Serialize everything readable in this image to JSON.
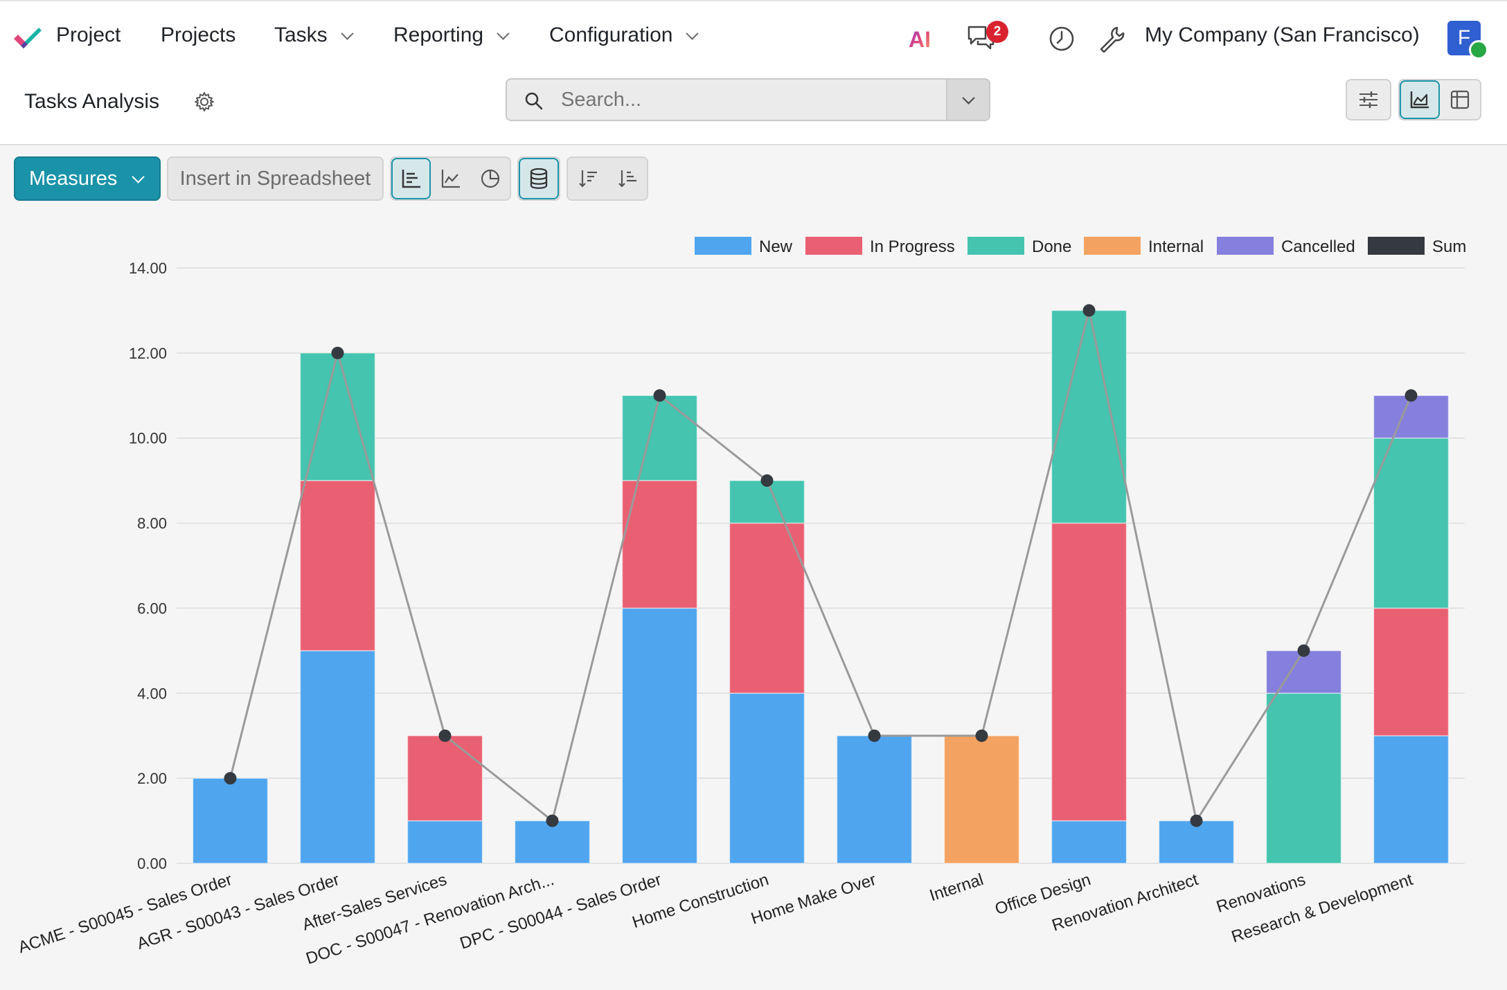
{
  "nav": {
    "app_name": "Project",
    "items": [
      {
        "label": "Projects",
        "dropdown": false
      },
      {
        "label": "Tasks",
        "dropdown": true
      },
      {
        "label": "Reporting",
        "dropdown": true
      },
      {
        "label": "Configuration",
        "dropdown": true
      }
    ],
    "ai_label": "AI",
    "messages_badge": "2",
    "company": "My Company (San Francisco)",
    "avatar_initial": "F"
  },
  "control_panel": {
    "breadcrumb": "Tasks Analysis",
    "search_placeholder": "Search..."
  },
  "toolbar": {
    "measures_label": "Measures",
    "insert_label": "Insert in Spreadsheet"
  },
  "colors": {
    "accent": "#1a93a9",
    "New": "#4fa5ee",
    "In Progress": "#ea6073",
    "Done": "#45c4af",
    "Internal": "#f4a261",
    "Cancelled": "#8580dd",
    "Sum": "#343a40"
  },
  "chart_data": {
    "type": "bar",
    "stacked": true,
    "categories": [
      "ACME - S00045 - Sales Order",
      "AGR - S00043 - Sales Order",
      "After-Sales Services",
      "DOC - S00047 - Renovation Arch...",
      "DPC - S00044 - Sales Order",
      "Home Construction",
      "Home Make Over",
      "Internal",
      "Office Design",
      "Renovation Architect",
      "Renovations",
      "Research & Development"
    ],
    "series": [
      {
        "name": "New",
        "values": [
          2,
          5,
          1,
          1,
          6,
          4,
          3,
          0,
          1,
          1,
          0,
          3
        ]
      },
      {
        "name": "In Progress",
        "values": [
          0,
          4,
          2,
          0,
          3,
          4,
          0,
          0,
          7,
          0,
          0,
          3
        ]
      },
      {
        "name": "Done",
        "values": [
          0,
          3,
          0,
          0,
          2,
          1,
          0,
          0,
          5,
          0,
          4,
          4
        ]
      },
      {
        "name": "Internal",
        "values": [
          0,
          0,
          0,
          0,
          0,
          0,
          0,
          3,
          0,
          0,
          0,
          0
        ]
      },
      {
        "name": "Cancelled",
        "values": [
          0,
          0,
          0,
          0,
          0,
          0,
          0,
          0,
          0,
          0,
          1,
          1
        ]
      }
    ],
    "line_series": {
      "name": "Sum",
      "values": [
        2,
        12,
        3,
        1,
        11,
        9,
        3,
        3,
        13,
        1,
        5,
        11
      ]
    },
    "y_ticks": [
      "0.00",
      "2.00",
      "4.00",
      "6.00",
      "8.00",
      "10.00",
      "12.00",
      "14.00"
    ],
    "ylim": [
      0,
      14
    ],
    "grid": true,
    "legend_position": "top-right"
  }
}
